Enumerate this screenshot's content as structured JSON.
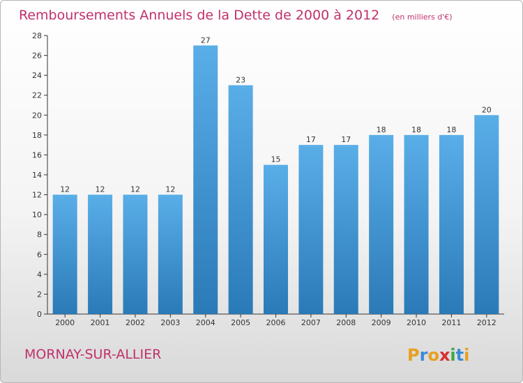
{
  "chart_data": {
    "type": "bar",
    "title": "Remboursements Annuels de la Dette de 2000 à 2012",
    "unit_note": "(en milliers d'€)",
    "categories": [
      "2000",
      "2001",
      "2002",
      "2003",
      "2004",
      "2005",
      "2006",
      "2007",
      "2008",
      "2009",
      "2010",
      "2011",
      "2012"
    ],
    "values": [
      12,
      12,
      12,
      12,
      27,
      23,
      15,
      17,
      17,
      18,
      18,
      18,
      20
    ],
    "ylim": [
      0,
      28
    ],
    "yticks": [
      0,
      2,
      4,
      6,
      8,
      10,
      12,
      14,
      16,
      18,
      20,
      22,
      24,
      26,
      28
    ],
    "grid": false,
    "bar_color_top": "#5aaee8",
    "bar_color_bottom": "#2a7ab8"
  },
  "commune_name": "MORNAY-SUR-ALLIER",
  "logo": {
    "letters": [
      "P",
      "r",
      "o",
      "x",
      "i",
      "t",
      "i"
    ],
    "colors": [
      "#e8a020",
      "#3a8ad8",
      "#e8a020",
      "#d83030",
      "#3aa840",
      "#3a8ad8",
      "#e8a020"
    ]
  }
}
